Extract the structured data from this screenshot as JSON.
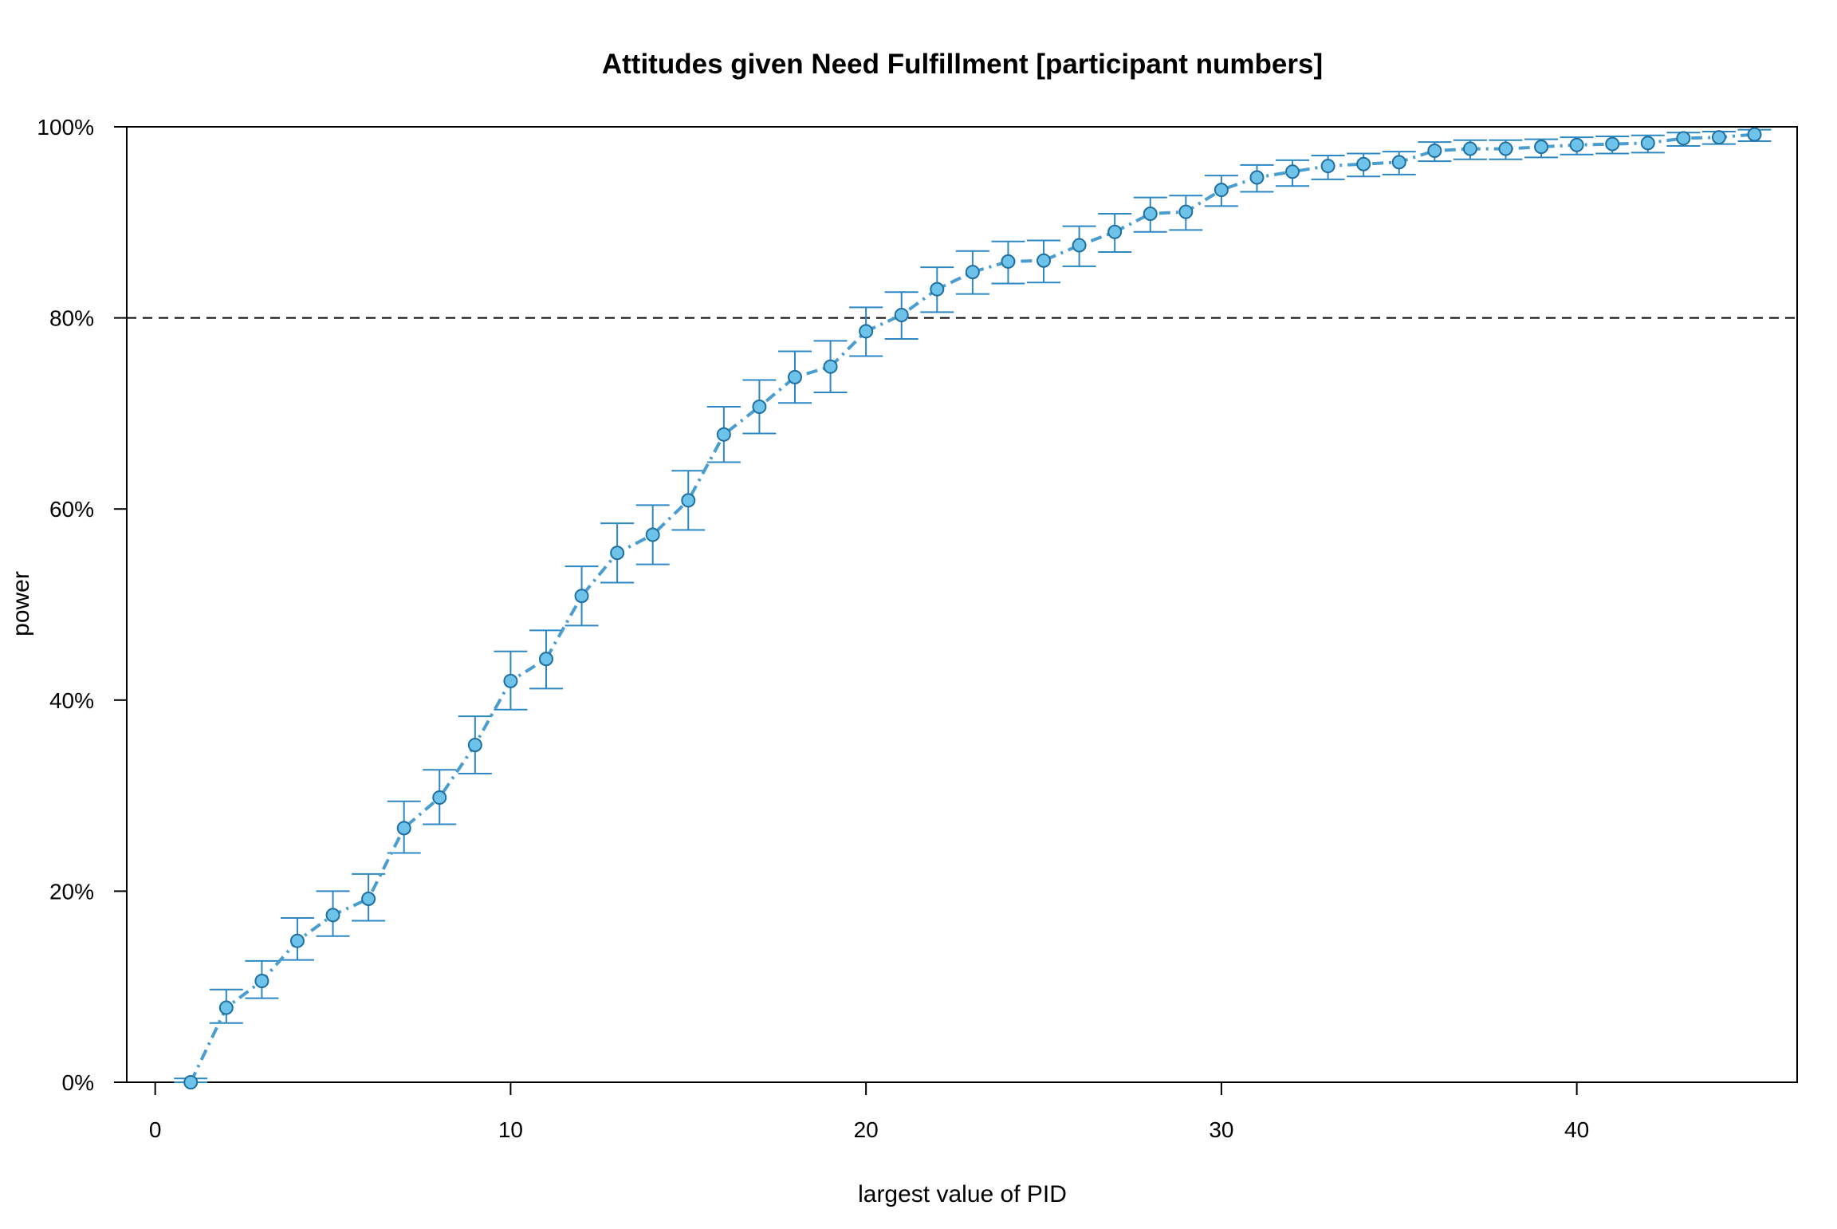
{
  "chart_data": {
    "type": "line",
    "title": "Attitudes given Need Fulfillment [participant numbers]",
    "xlabel": "largest value of PID",
    "ylabel": "power",
    "xlim": [
      -0.8,
      46.2
    ],
    "ylim": [
      0,
      1
    ],
    "x_ticks": [
      0,
      10,
      20,
      30,
      40
    ],
    "x_tick_labels": [
      "0",
      "10",
      "20",
      "30",
      "40"
    ],
    "y_ticks": [
      0,
      0.2,
      0.4,
      0.6,
      0.8,
      1.0
    ],
    "y_tick_labels": [
      "0%",
      "20%",
      "40%",
      "60%",
      "80%",
      "100%"
    ],
    "reference_line": {
      "y": 0.8,
      "style": "dashed",
      "color": "#000000"
    },
    "grid": false,
    "legend": "none",
    "colors": {
      "line": "#4A9ECF",
      "point_fill": "#6EC3EA",
      "point_stroke": "#1F6F9F",
      "error_bar": "#2C87C3"
    },
    "series": [
      {
        "x": [
          1,
          2,
          3,
          4,
          5,
          6,
          7,
          8,
          9,
          10,
          11,
          12,
          13,
          14,
          15,
          16,
          17,
          18,
          19,
          20,
          21,
          22,
          23,
          24,
          25,
          26,
          27,
          28,
          29,
          30,
          31,
          32,
          33,
          34,
          35,
          36,
          37,
          38,
          39,
          40,
          41,
          42,
          43,
          44,
          45
        ],
        "values": [
          0.0,
          0.078,
          0.106,
          0.148,
          0.175,
          0.192,
          0.266,
          0.298,
          0.353,
          0.42,
          0.443,
          0.509,
          0.554,
          0.573,
          0.609,
          0.678,
          0.707,
          0.738,
          0.749,
          0.786,
          0.803,
          0.83,
          0.848,
          0.859,
          0.86,
          0.876,
          0.89,
          0.909,
          0.911,
          0.934,
          0.947,
          0.953,
          0.959,
          0.961,
          0.963,
          0.975,
          0.977,
          0.977,
          0.979,
          0.981,
          0.982,
          0.983,
          0.988,
          0.989,
          0.992
        ],
        "lower": [
          0.0,
          0.062,
          0.088,
          0.128,
          0.153,
          0.169,
          0.24,
          0.27,
          0.323,
          0.39,
          0.412,
          0.478,
          0.523,
          0.542,
          0.578,
          0.649,
          0.679,
          0.711,
          0.722,
          0.76,
          0.778,
          0.806,
          0.825,
          0.836,
          0.837,
          0.854,
          0.869,
          0.89,
          0.892,
          0.917,
          0.932,
          0.938,
          0.945,
          0.948,
          0.95,
          0.964,
          0.966,
          0.966,
          0.968,
          0.971,
          0.972,
          0.973,
          0.98,
          0.982,
          0.985
        ],
        "upper": [
          0.004,
          0.097,
          0.127,
          0.172,
          0.2,
          0.218,
          0.294,
          0.327,
          0.383,
          0.451,
          0.473,
          0.54,
          0.585,
          0.604,
          0.64,
          0.707,
          0.735,
          0.765,
          0.776,
          0.811,
          0.827,
          0.853,
          0.87,
          0.88,
          0.881,
          0.896,
          0.909,
          0.926,
          0.928,
          0.949,
          0.96,
          0.965,
          0.97,
          0.972,
          0.974,
          0.984,
          0.986,
          0.986,
          0.987,
          0.989,
          0.99,
          0.991,
          0.994,
          0.995,
          0.997
        ]
      }
    ]
  }
}
